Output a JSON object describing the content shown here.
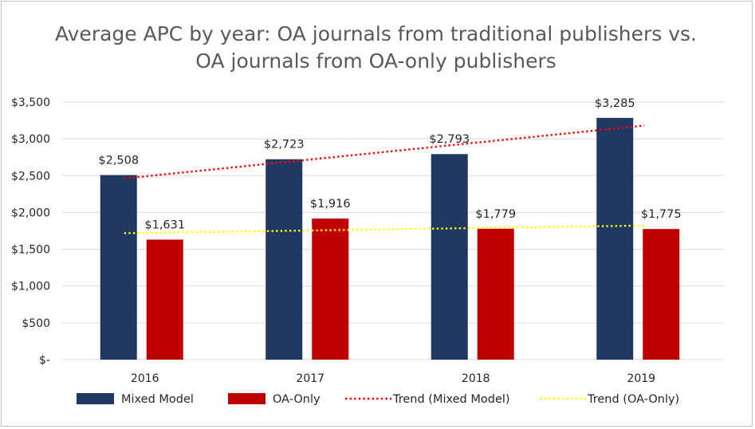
{
  "chart_data": {
    "type": "bar",
    "title_line1": "Average APC by year: OA journals from traditional publishers vs.",
    "title_line2": "OA journals from OA-only publishers",
    "categories": [
      "2016",
      "2017",
      "2018",
      "2019"
    ],
    "series": [
      {
        "name": "Mixed Model",
        "color": "#1f3864",
        "values": [
          2508,
          2723,
          2793,
          3285
        ],
        "labels": [
          "$2,508",
          "$2,723",
          "$2,793",
          "$3,285"
        ]
      },
      {
        "name": "OA-Only",
        "color": "#c00000",
        "values": [
          1631,
          1916,
          1779,
          1775
        ],
        "labels": [
          "$1,631",
          "$1,916",
          "$1,779",
          "$1,775"
        ]
      }
    ],
    "trendlines": [
      {
        "name": "Trend (Mixed Model)",
        "color": "#ff0000",
        "style": "dotted",
        "start": 2462,
        "end": 3181
      },
      {
        "name": "Trend (OA-Only)",
        "color": "#ffff00",
        "style": "dotted",
        "start": 1718,
        "end": 1822
      }
    ],
    "ylim": [
      0,
      3500
    ],
    "yticks": [
      0,
      500,
      1000,
      1500,
      2000,
      2500,
      3000,
      3500
    ],
    "ytick_labels": [
      "$-",
      "$500",
      "$1,000",
      "$1,500",
      "$2,000",
      "$2,500",
      "$3,000",
      "$3,500"
    ],
    "grid": true,
    "legend_position": "bottom"
  }
}
